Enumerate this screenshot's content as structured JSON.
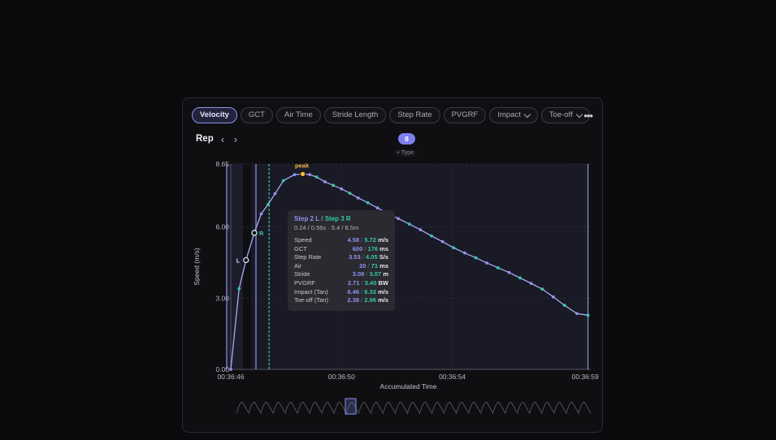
{
  "tabs": [
    {
      "label": "Velocity",
      "active": true,
      "dropdown": false
    },
    {
      "label": "GCT",
      "active": false,
      "dropdown": false
    },
    {
      "label": "Air Time",
      "active": false,
      "dropdown": false
    },
    {
      "label": "Stride Length",
      "active": false,
      "dropdown": false
    },
    {
      "label": "Step Rate",
      "active": false,
      "dropdown": false
    },
    {
      "label": "PVGRF",
      "active": false,
      "dropdown": false
    },
    {
      "label": "Impact",
      "active": false,
      "dropdown": true
    },
    {
      "label": "Toe-off",
      "active": false,
      "dropdown": true
    }
  ],
  "more_icon": "more-horizontal-icon",
  "header": {
    "title": "Rep",
    "prev_icon": "chevron-left-icon",
    "next_icon": "chevron-right-icon",
    "badge": "8",
    "add_type": "+ Type"
  },
  "colors": {
    "left": "#8f93ee",
    "right": "#35c9a9",
    "peak": "#f5b942",
    "line": "#a9abf2"
  },
  "chart_data": {
    "type": "line",
    "title": "",
    "xlabel": "Accumulated Time",
    "ylabel": "Speed (m/s)",
    "y_ticks": [
      "0.00",
      "3.00",
      "6.00",
      "8.65"
    ],
    "x_ticks": [
      "00:36:46",
      "00:36:50",
      "00:36:54",
      "00:36:59"
    ],
    "ylim": [
      0,
      8.65
    ],
    "xlim_seconds": [
      0,
      13
    ],
    "grid": true,
    "annotations": {
      "peak": "peak",
      "left_marker": "L",
      "right_marker": "R"
    },
    "series": [
      {
        "x": [
          0.0,
          0.3,
          0.55,
          0.85,
          1.1,
          1.35,
          1.6,
          1.9,
          2.3,
          2.6,
          2.85,
          3.1,
          3.4,
          3.7,
          4.0,
          4.3,
          4.6,
          4.95,
          5.3,
          5.65,
          6.05,
          6.45,
          6.85,
          7.25,
          7.65,
          8.05,
          8.45,
          8.85,
          9.25,
          9.65,
          10.05,
          10.45,
          10.85,
          11.25,
          11.65,
          12.05,
          12.5,
          12.9
        ],
        "y": [
          0.0,
          3.4,
          4.6,
          5.75,
          6.55,
          6.95,
          7.4,
          7.95,
          8.2,
          8.23,
          8.2,
          8.1,
          7.9,
          7.75,
          7.6,
          7.42,
          7.22,
          7.02,
          6.8,
          6.58,
          6.35,
          6.12,
          5.88,
          5.62,
          5.38,
          5.12,
          4.9,
          4.7,
          4.48,
          4.28,
          4.08,
          3.85,
          3.62,
          3.38,
          3.05,
          2.7,
          2.35,
          2.28
        ]
      }
    ]
  },
  "tooltip": {
    "head_left": "Step 2 L",
    "head_sep": "/",
    "head_right": "Step 3 R",
    "sub": "0.24 / 0.56s  ·  5.4 / 8.5m",
    "rows": [
      {
        "label": "Speed",
        "l": "4.58",
        "r": "5.72",
        "unit": "m/s"
      },
      {
        "label": "GCT",
        "l": "600",
        "r": "176",
        "unit": "ms"
      },
      {
        "label": "Step Rate",
        "l": "3.53",
        "r": "4.05",
        "unit": "S/s"
      },
      {
        "label": "Air",
        "l": "20",
        "r": "71",
        "unit": "ms"
      },
      {
        "label": "Stride",
        "l": "3.09",
        "r": "3.07",
        "unit": "m"
      },
      {
        "label": "PVGRF",
        "l": "2.71",
        "r": "3.40",
        "unit": "BW"
      },
      {
        "label": "Impact (Tan)",
        "l": "6.46",
        "r": "6.33",
        "unit": "m/s"
      },
      {
        "label": "Toe-off (Tan)",
        "l": "2.38",
        "r": "2.96",
        "unit": "m/s"
      }
    ]
  }
}
